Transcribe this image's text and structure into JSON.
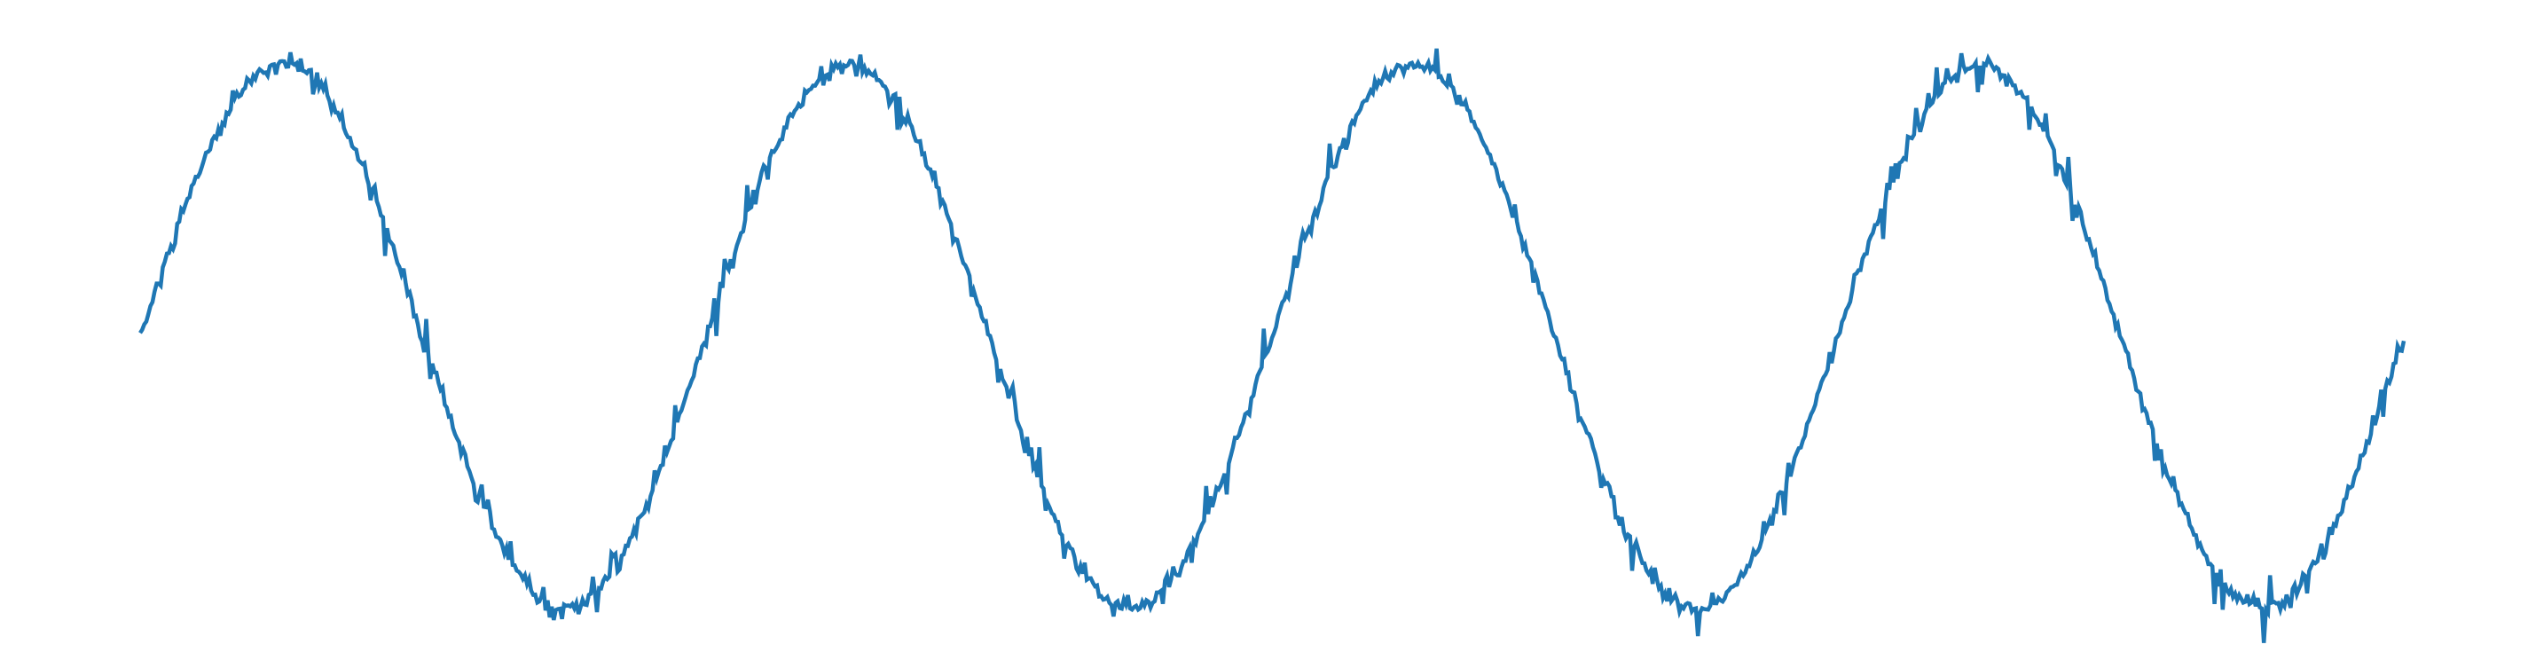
{
  "chart_data": {
    "type": "line",
    "title": "",
    "xlabel": "",
    "ylabel": "",
    "axes_visible": false,
    "grid": false,
    "legend": "none",
    "xlim": [
      0,
      8
    ],
    "ylim": [
      -1.1,
      1.1
    ],
    "series": [
      {
        "color": "#1f77b4",
        "line_style": "solid",
        "shape": "sine wave with small high-frequency noise",
        "x": [
          0.0,
          0.1,
          0.2,
          0.3,
          0.4,
          0.5,
          0.6,
          0.7,
          0.8,
          0.9,
          1.0,
          1.1,
          1.2,
          1.3,
          1.4,
          1.5,
          1.6,
          1.7,
          1.8,
          1.9,
          2.0,
          2.1,
          2.2,
          2.3,
          2.4,
          2.5,
          2.6,
          2.7,
          2.8,
          2.9,
          3.0,
          3.1,
          3.2,
          3.3,
          3.4,
          3.5,
          3.6,
          3.7,
          3.8,
          3.9,
          4.0,
          4.1,
          4.2,
          4.3,
          4.4,
          4.5,
          4.6,
          4.7,
          4.8,
          4.9,
          5.0,
          5.1,
          5.2,
          5.3,
          5.4,
          5.5,
          5.6,
          5.7,
          5.8,
          5.9,
          6.0,
          6.1,
          6.2,
          6.3,
          6.4,
          6.5,
          6.6,
          6.7,
          6.8,
          6.9,
          7.0,
          7.1,
          7.2,
          7.3,
          7.4,
          7.5,
          7.6,
          7.7,
          7.8,
          7.9,
          8.0
        ],
        "y": [
          0.0,
          0.309,
          0.588,
          0.809,
          0.951,
          1.0,
          0.951,
          0.809,
          0.588,
          0.309,
          0.0,
          -0.309,
          -0.588,
          -0.809,
          -0.951,
          -1.0,
          -0.951,
          -0.809,
          -0.588,
          -0.309,
          0.0,
          0.309,
          0.588,
          0.809,
          0.951,
          1.0,
          0.951,
          0.809,
          0.588,
          0.309,
          0.0,
          -0.309,
          -0.588,
          -0.809,
          -0.951,
          -1.0,
          -0.951,
          -0.809,
          -0.588,
          -0.309,
          0.0,
          0.309,
          0.588,
          0.809,
          0.951,
          1.0,
          0.951,
          0.809,
          0.588,
          0.309,
          0.0,
          -0.309,
          -0.588,
          -0.809,
          -0.951,
          -1.0,
          -0.951,
          -0.809,
          -0.588,
          -0.309,
          0.0,
          0.309,
          0.588,
          0.809,
          0.951,
          1.0,
          0.951,
          0.809,
          0.588,
          0.309,
          0.0,
          -0.309,
          -0.588,
          -0.809,
          -0.951,
          -1.0,
          -0.951,
          -0.809,
          -0.588,
          -0.309,
          0.0
        ]
      }
    ]
  }
}
